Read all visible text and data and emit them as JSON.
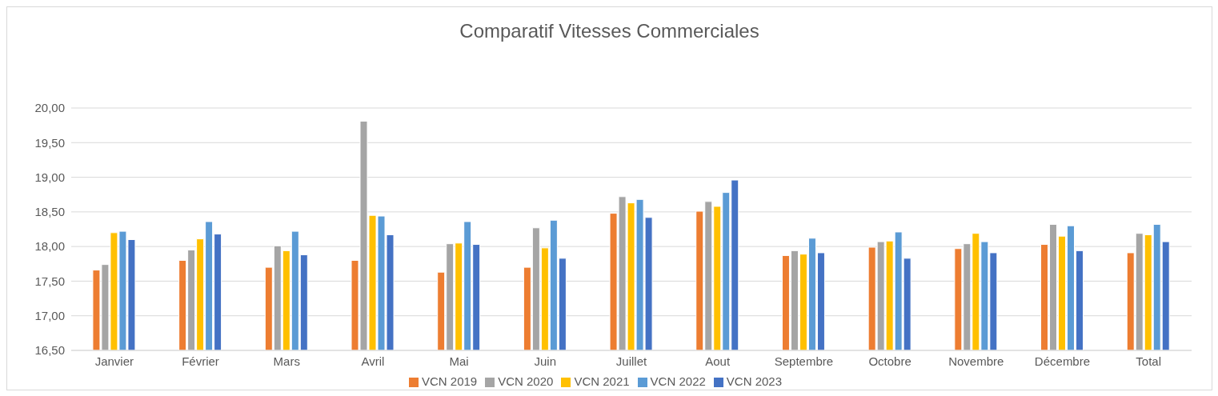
{
  "chart_data": {
    "type": "bar",
    "title": "Comparatif Vitesses Commerciales",
    "categories": [
      "Janvier",
      "Février",
      "Mars",
      "Avril",
      "Mai",
      "Juin",
      "Juillet",
      "Aout",
      "Septembre",
      "Octobre",
      "Novembre",
      "Décembre",
      "Total"
    ],
    "series": [
      {
        "name": "VCN 2019",
        "color": "#ed7d31",
        "values": [
          17.66,
          17.8,
          17.7,
          17.8,
          17.63,
          17.7,
          18.48,
          18.51,
          17.87,
          17.99,
          17.97,
          18.03,
          17.91
        ]
      },
      {
        "name": "VCN 2020",
        "color": "#a5a5a5",
        "values": [
          17.74,
          17.95,
          18.01,
          19.81,
          18.04,
          18.27,
          18.72,
          18.65,
          17.94,
          18.07,
          18.04,
          18.32,
          18.19
        ]
      },
      {
        "name": "VCN 2021",
        "color": "#ffc000",
        "values": [
          18.2,
          18.11,
          17.94,
          18.45,
          18.05,
          17.98,
          18.63,
          18.58,
          17.89,
          18.08,
          18.19,
          18.15,
          18.17
        ]
      },
      {
        "name": "VCN 2022",
        "color": "#5b9bd5",
        "values": [
          18.22,
          18.36,
          18.22,
          18.44,
          18.36,
          18.38,
          18.68,
          18.78,
          18.12,
          18.21,
          18.07,
          18.3,
          18.32
        ]
      },
      {
        "name": "VCN 2023",
        "color": "#4472c4",
        "values": [
          18.1,
          18.18,
          17.88,
          18.17,
          18.03,
          17.83,
          18.42,
          18.96,
          17.91,
          17.83,
          17.91,
          17.94,
          18.07
        ]
      }
    ],
    "ylim": [
      16.5,
      20
    ],
    "yticks": [
      {
        "value": 16.5,
        "label": "16,50"
      },
      {
        "value": 17,
        "label": "17,00"
      },
      {
        "value": 17.5,
        "label": "17,50"
      },
      {
        "value": 18,
        "label": "18,00"
      },
      {
        "value": 18.5,
        "label": "18,50"
      },
      {
        "value": 19,
        "label": "19,00"
      },
      {
        "value": 19.5,
        "label": "19,50"
      },
      {
        "value": 20,
        "label": "20,00"
      }
    ],
    "grid": "y",
    "legend": "bottom"
  }
}
